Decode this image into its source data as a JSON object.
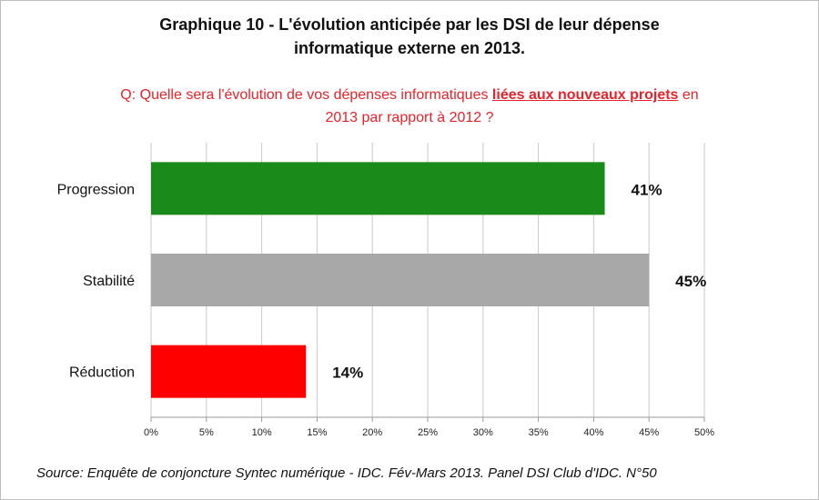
{
  "title_line1": "Graphique 10 - L'évolution anticipée par les DSI de leur dépense",
  "title_line2": "informatique externe en 2013.",
  "question": {
    "before": "Q: Quelle sera l'évolution de vos dépenses informatiques ",
    "underlined": "liées aux nouveaux projets",
    "after": " en",
    "line2": "2013 par rapport à 2012 ?"
  },
  "source": "Source: Enquête de conjoncture Syntec numérique - IDC. Fév-Mars 2013. Panel DSI Club d'IDC. N°50",
  "chart_data": {
    "type": "bar",
    "orientation": "horizontal",
    "categories": [
      "Progression",
      "Stabilité",
      "Réduction"
    ],
    "values": [
      41,
      45,
      14
    ],
    "data_labels": [
      "41%",
      "45%",
      "14%"
    ],
    "bar_colors": [
      "#1a8a1a",
      "#a8a8a8",
      "#ff0000"
    ],
    "xlim": [
      0,
      50
    ],
    "xticks": [
      0,
      5,
      10,
      15,
      20,
      25,
      30,
      35,
      40,
      45,
      50
    ],
    "xtick_labels": [
      "0%",
      "5%",
      "10%",
      "15%",
      "20%",
      "25%",
      "30%",
      "35%",
      "40%",
      "45%",
      "50%"
    ],
    "grid": true
  }
}
